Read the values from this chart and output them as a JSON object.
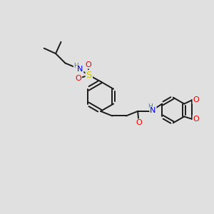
{
  "background_color": "#e0e0e0",
  "bond_color": "#1a1a1a",
  "bond_width": 1.4,
  "atom_colors": {
    "H": "#3a8080",
    "N": "#0000ee",
    "O": "#ee0000",
    "S": "#cccc00"
  },
  "figsize": [
    3.0,
    3.0
  ],
  "dpi": 100,
  "xlim": [
    0,
    10
  ],
  "ylim": [
    0,
    10
  ],
  "label_fs": 7.0,
  "label_fs_large": 8.0
}
